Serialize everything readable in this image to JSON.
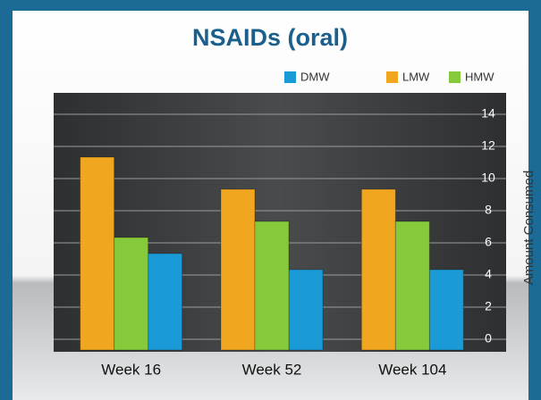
{
  "chart_data": {
    "type": "bar",
    "title": "NSAIDs (oral)",
    "categories": [
      "Week 16",
      "Week 52",
      "Week 104"
    ],
    "series": [
      {
        "name": "DMW",
        "color": "#1a9ad6",
        "values": [
          6,
          5,
          5
        ]
      },
      {
        "name": "LMW",
        "color": "#f0a61e",
        "values": [
          12,
          10,
          10
        ]
      },
      {
        "name": "HMW",
        "color": "#86c93a",
        "values": [
          7,
          8,
          8
        ]
      }
    ],
    "y_label": "Amount Consumed",
    "ylim": [
      0,
      14
    ],
    "yticks": [
      0,
      2,
      4,
      6,
      8,
      10,
      12,
      14
    ],
    "grid": true
  }
}
